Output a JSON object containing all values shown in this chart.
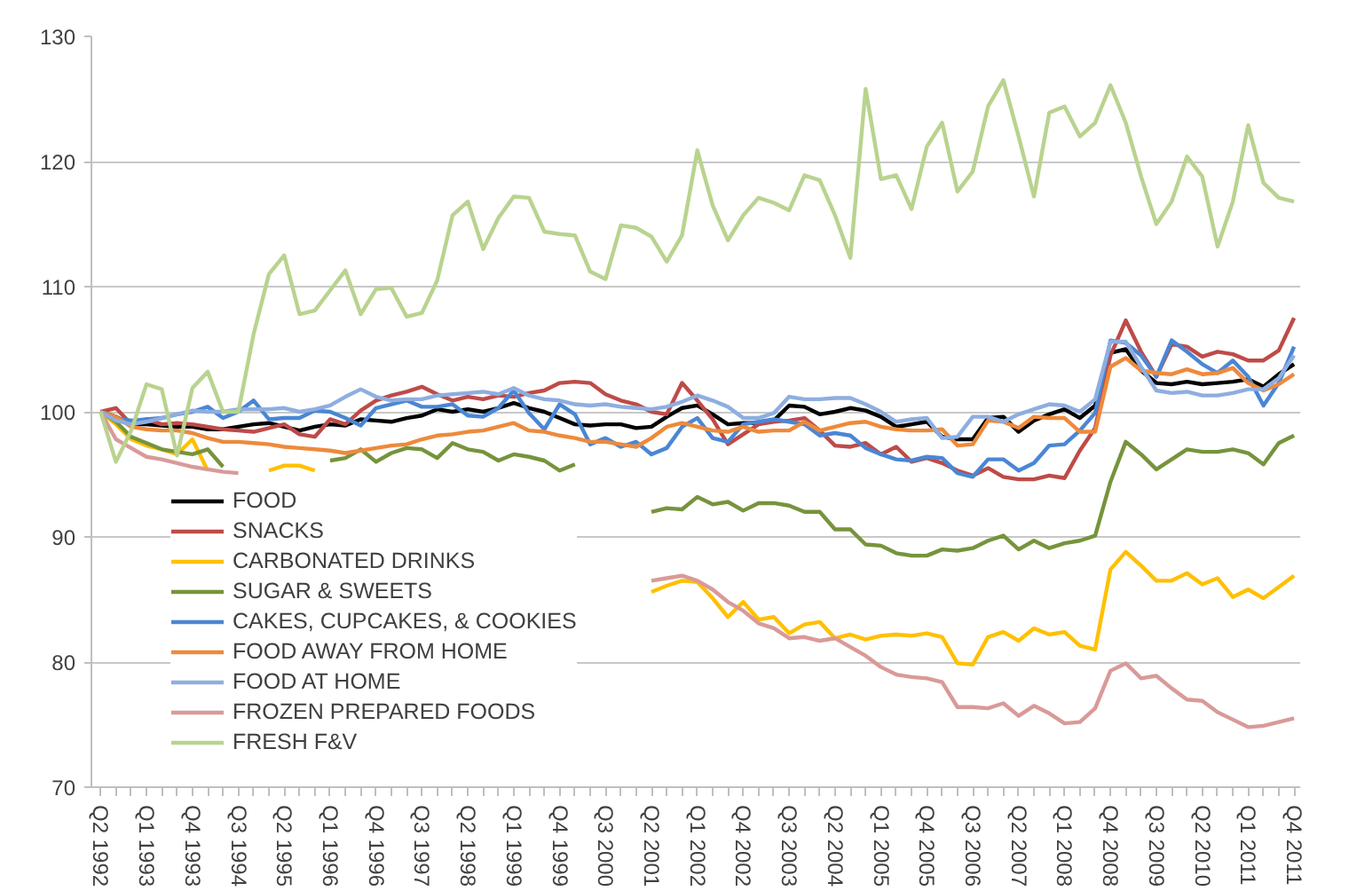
{
  "chart_data": {
    "type": "line",
    "categories": [
      "Q2 1992",
      null,
      null,
      "Q1 1993",
      null,
      null,
      "Q4 1993",
      null,
      null,
      "Q3 1994",
      null,
      null,
      "Q2 1995",
      null,
      null,
      "Q1 1996",
      null,
      null,
      "Q4 1996",
      null,
      null,
      "Q3 1997",
      null,
      null,
      "Q2 1998",
      null,
      null,
      "Q1 1999",
      null,
      null,
      "Q4 1999",
      null,
      null,
      "Q3 2000",
      null,
      null,
      "Q2 2001",
      null,
      null,
      "Q1 2002",
      null,
      null,
      "Q4 2002",
      null,
      null,
      "Q3 2003",
      null,
      null,
      "Q2 2004",
      null,
      null,
      "Q1 2005",
      null,
      null,
      "Q4 2005",
      null,
      null,
      "Q3 2006",
      null,
      null,
      "Q2 2007",
      null,
      null,
      "Q1 2008",
      null,
      null,
      "Q4 2008",
      null,
      null,
      "Q3 2009",
      null,
      null,
      "Q2 2010",
      null,
      null,
      "Q1 2011",
      null,
      null,
      "Q4 2011"
    ],
    "ylim": [
      70,
      130
    ],
    "yticks": [
      70,
      80,
      90,
      100,
      110,
      120,
      130
    ],
    "grid": "y",
    "legend": "bottom left",
    "marker": "none",
    "line_style": "solid",
    "series": [
      {
        "name": "FOOD",
        "color": "#000000",
        "values": [
          100,
          99.6,
          99.0,
          99.0,
          98.9,
          98.8,
          98.8,
          98.6,
          98.6,
          98.8,
          99.0,
          99.1,
          98.8,
          98.5,
          98.8,
          99.0,
          98.9,
          99.4,
          99.3,
          99.2,
          99.5,
          99.7,
          100.2,
          100.0,
          100.2,
          100.0,
          100.3,
          100.7,
          100.3,
          100.0,
          99.5,
          99.0,
          98.9,
          99.0,
          99.0,
          98.7,
          98.8,
          99.6,
          100.3,
          100.5,
          99.8,
          99.0,
          99.1,
          99.1,
          99.3,
          100.5,
          100.4,
          99.8,
          100.0,
          100.3,
          100.1,
          99.6,
          98.8,
          99.0,
          99.2,
          98.0,
          97.8,
          97.8,
          99.5,
          99.6,
          98.4,
          99.3,
          99.8,
          100.2,
          99.5,
          100.5,
          104.7,
          105.0,
          103.3,
          102.3,
          102.2,
          102.4,
          102.2,
          102.3,
          102.4,
          102.6,
          102.0,
          103.0,
          103.8
        ]
      },
      {
        "name": "SNACKS",
        "color": "#be4b48",
        "values": [
          100,
          100.3,
          99.0,
          99.4,
          99.0,
          99.1,
          99.0,
          98.8,
          98.6,
          98.5,
          98.4,
          98.7,
          99.0,
          98.2,
          98.0,
          99.4,
          99.0,
          100.1,
          100.9,
          101.3,
          101.6,
          102.0,
          101.4,
          100.9,
          101.2,
          101.0,
          101.3,
          101.2,
          101.5,
          101.7,
          102.3,
          102.4,
          102.3,
          101.4,
          100.9,
          100.6,
          100.0,
          99.8,
          102.3,
          100.9,
          99.4,
          97.4,
          98.2,
          99.0,
          99.2,
          99.3,
          99.5,
          98.5,
          97.3,
          97.2,
          97.5,
          96.6,
          97.2,
          96.0,
          96.3,
          95.9,
          95.3,
          94.9,
          95.5,
          94.8,
          94.6,
          94.6,
          94.9,
          94.7,
          96.9,
          98.7,
          104.5,
          107.3,
          104.8,
          102.8,
          105.4,
          105.2,
          104.4,
          104.8,
          104.6,
          104.1,
          104.1,
          104.9,
          107.5
        ]
      },
      {
        "name": "CARBONATED DRINKS",
        "color": "#ffc000",
        "values": [
          100,
          99.0,
          97.8,
          97.3,
          97.0,
          96.6,
          97.8,
          95.3,
          null,
          null,
          null,
          95.3,
          95.7,
          95.7,
          95.3,
          null,
          null,
          null,
          null,
          null,
          null,
          null,
          null,
          null,
          null,
          null,
          null,
          null,
          null,
          null,
          null,
          null,
          null,
          null,
          null,
          null,
          85.6,
          86.1,
          86.5,
          86.4,
          85.1,
          83.6,
          84.8,
          83.4,
          83.6,
          82.3,
          83.0,
          83.2,
          81.9,
          82.2,
          81.8,
          82.1,
          82.2,
          82.1,
          82.3,
          82.0,
          79.9,
          79.8,
          82.0,
          82.4,
          81.7,
          82.7,
          82.2,
          82.4,
          81.3,
          81.0,
          87.4,
          88.8,
          87.7,
          86.5,
          86.5,
          87.1,
          86.2,
          86.7,
          85.2,
          85.8,
          85.1,
          86.0,
          86.9
        ]
      },
      {
        "name": "SUGAR & SWEETS",
        "color": "#77933c",
        "values": [
          100,
          99.2,
          98.0,
          97.5,
          97.0,
          96.8,
          96.6,
          97.0,
          95.6,
          null,
          null,
          null,
          null,
          null,
          null,
          96.1,
          96.3,
          97.0,
          96.0,
          96.7,
          97.1,
          97.0,
          96.3,
          97.5,
          97.0,
          96.8,
          96.1,
          96.6,
          96.4,
          96.1,
          95.3,
          95.8,
          null,
          null,
          null,
          null,
          92.0,
          92.3,
          92.2,
          93.2,
          92.6,
          92.8,
          92.1,
          92.7,
          92.7,
          92.5,
          92.0,
          92.0,
          90.6,
          90.6,
          89.4,
          89.3,
          88.7,
          88.5,
          88.5,
          89.0,
          88.9,
          89.1,
          89.7,
          90.1,
          89.0,
          89.7,
          89.1,
          89.5,
          89.7,
          90.1,
          94.4,
          97.6,
          96.6,
          95.4,
          96.2,
          97.0,
          96.8,
          96.8,
          97.0,
          96.7,
          95.8,
          97.5,
          98.1
        ]
      },
      {
        "name": "CAKES, CUPCAKES, & COOKIES",
        "color": "#4a86d4",
        "values": [
          100,
          99.5,
          99.3,
          99.4,
          99.5,
          99.8,
          100.0,
          100.4,
          99.5,
          100.0,
          100.9,
          99.4,
          99.5,
          99.5,
          100.1,
          100.0,
          99.5,
          98.9,
          100.3,
          100.6,
          100.9,
          100.4,
          100.4,
          100.6,
          99.7,
          99.6,
          100.3,
          101.7,
          99.9,
          98.6,
          100.6,
          99.8,
          97.4,
          97.9,
          97.2,
          97.6,
          96.6,
          97.1,
          98.8,
          99.5,
          97.9,
          97.6,
          99.0,
          99.2,
          99.4,
          99.2,
          99.0,
          98.1,
          98.3,
          98.1,
          97.1,
          96.6,
          96.2,
          96.1,
          96.4,
          96.3,
          95.1,
          94.8,
          96.2,
          96.2,
          95.3,
          95.9,
          97.3,
          97.4,
          98.5,
          99.9,
          105.7,
          105.5,
          104.5,
          102.8,
          105.7,
          104.8,
          103.8,
          103.1,
          104.1,
          102.8,
          100.5,
          102.3,
          105.2
        ]
      },
      {
        "name": "FOOD AWAY FROM HOME",
        "color": "#ed8a3c",
        "values": [
          100,
          99.6,
          98.8,
          98.6,
          98.5,
          98.5,
          98.3,
          97.9,
          97.6,
          97.6,
          97.5,
          97.4,
          97.2,
          97.1,
          97.0,
          96.9,
          96.7,
          96.9,
          97.1,
          97.3,
          97.4,
          97.8,
          98.1,
          98.2,
          98.4,
          98.5,
          98.8,
          99.1,
          98.5,
          98.4,
          98.1,
          97.9,
          97.6,
          97.6,
          97.4,
          97.2,
          97.9,
          98.8,
          99.1,
          98.8,
          98.5,
          98.4,
          98.8,
          98.4,
          98.5,
          98.5,
          99.2,
          98.5,
          98.8,
          99.1,
          99.2,
          98.8,
          98.6,
          98.5,
          98.5,
          98.6,
          97.3,
          97.4,
          99.3,
          99.2,
          98.7,
          99.6,
          99.5,
          99.5,
          98.4,
          98.4,
          103.6,
          104.3,
          103.3,
          103.1,
          103.0,
          103.4,
          103.0,
          103.1,
          103.5,
          102.3,
          101.7,
          102.2,
          103.0
        ]
      },
      {
        "name": "FOOD AT HOME",
        "color": "#8eaee0",
        "values": [
          100,
          99.3,
          99.0,
          99.2,
          99.5,
          99.8,
          100.1,
          100.0,
          100.0,
          100.2,
          100.2,
          100.2,
          100.3,
          100.0,
          100.2,
          100.5,
          101.2,
          101.8,
          101.2,
          100.9,
          101.0,
          101.0,
          101.3,
          101.4,
          101.5,
          101.6,
          101.4,
          101.9,
          101.3,
          101.0,
          100.9,
          100.6,
          100.5,
          100.6,
          100.4,
          100.3,
          100.2,
          100.4,
          100.8,
          101.3,
          100.9,
          100.4,
          99.5,
          99.5,
          99.9,
          101.2,
          101.0,
          101.0,
          101.1,
          101.1,
          100.6,
          100.0,
          99.2,
          99.4,
          99.5,
          97.9,
          98.0,
          99.6,
          99.6,
          99.2,
          99.8,
          100.2,
          100.6,
          100.5,
          100.0,
          101.0,
          105.6,
          105.6,
          103.6,
          101.7,
          101.5,
          101.6,
          101.3,
          101.3,
          101.5,
          101.8,
          101.8,
          102.7,
          104.5
        ]
      },
      {
        "name": "FROZEN PREPARED FOODS",
        "color": "#d99a98",
        "values": [
          100,
          97.8,
          97.1,
          96.4,
          96.2,
          95.9,
          95.6,
          95.4,
          95.2,
          95.1,
          null,
          null,
          null,
          null,
          null,
          null,
          null,
          null,
          null,
          null,
          null,
          null,
          null,
          null,
          null,
          null,
          null,
          null,
          null,
          null,
          null,
          null,
          null,
          null,
          null,
          null,
          86.5,
          86.7,
          86.9,
          86.5,
          85.8,
          84.8,
          84.1,
          83.1,
          82.7,
          81.9,
          82.0,
          81.7,
          81.9,
          81.2,
          80.5,
          79.6,
          79.0,
          78.8,
          78.7,
          78.4,
          76.4,
          76.4,
          76.3,
          76.7,
          75.7,
          76.5,
          75.9,
          75.1,
          75.2,
          76.3,
          79.3,
          79.9,
          78.7,
          78.9,
          77.9,
          77.0,
          76.9,
          76.0,
          75.4,
          74.8,
          74.9,
          75.2,
          75.5
        ]
      },
      {
        "name": "FRESH F&V",
        "color": "#b9d38f",
        "values": [
          100,
          96,
          98.5,
          102.2,
          101.8,
          96.5,
          101.9,
          103.2,
          100,
          100,
          106.2,
          111,
          112.5,
          107.8,
          108.1,
          109.7,
          111.3,
          107.8,
          109.8,
          109.9,
          107.6,
          107.9,
          110.5,
          115.7,
          116.8,
          113,
          115.5,
          117.2,
          117.1,
          114.4,
          114.2,
          114.1,
          111.2,
          110.6,
          114.9,
          114.7,
          114.0,
          112,
          114.1,
          120.9,
          116.5,
          113.7,
          115.7,
          117.1,
          116.7,
          116.1,
          118.9,
          118.5,
          115.7,
          112.3,
          125.8,
          118.6,
          118.9,
          116.2,
          121.2,
          123.1,
          117.6,
          119.2,
          124.4,
          126.5,
          122.0,
          117.2,
          123.9,
          124.4,
          122,
          123.1,
          126.1,
          123.1,
          118.8,
          115,
          116.8,
          120.4,
          118.8,
          113.2,
          116.8,
          122.9,
          118.3,
          117.1,
          116.8
        ]
      }
    ]
  }
}
